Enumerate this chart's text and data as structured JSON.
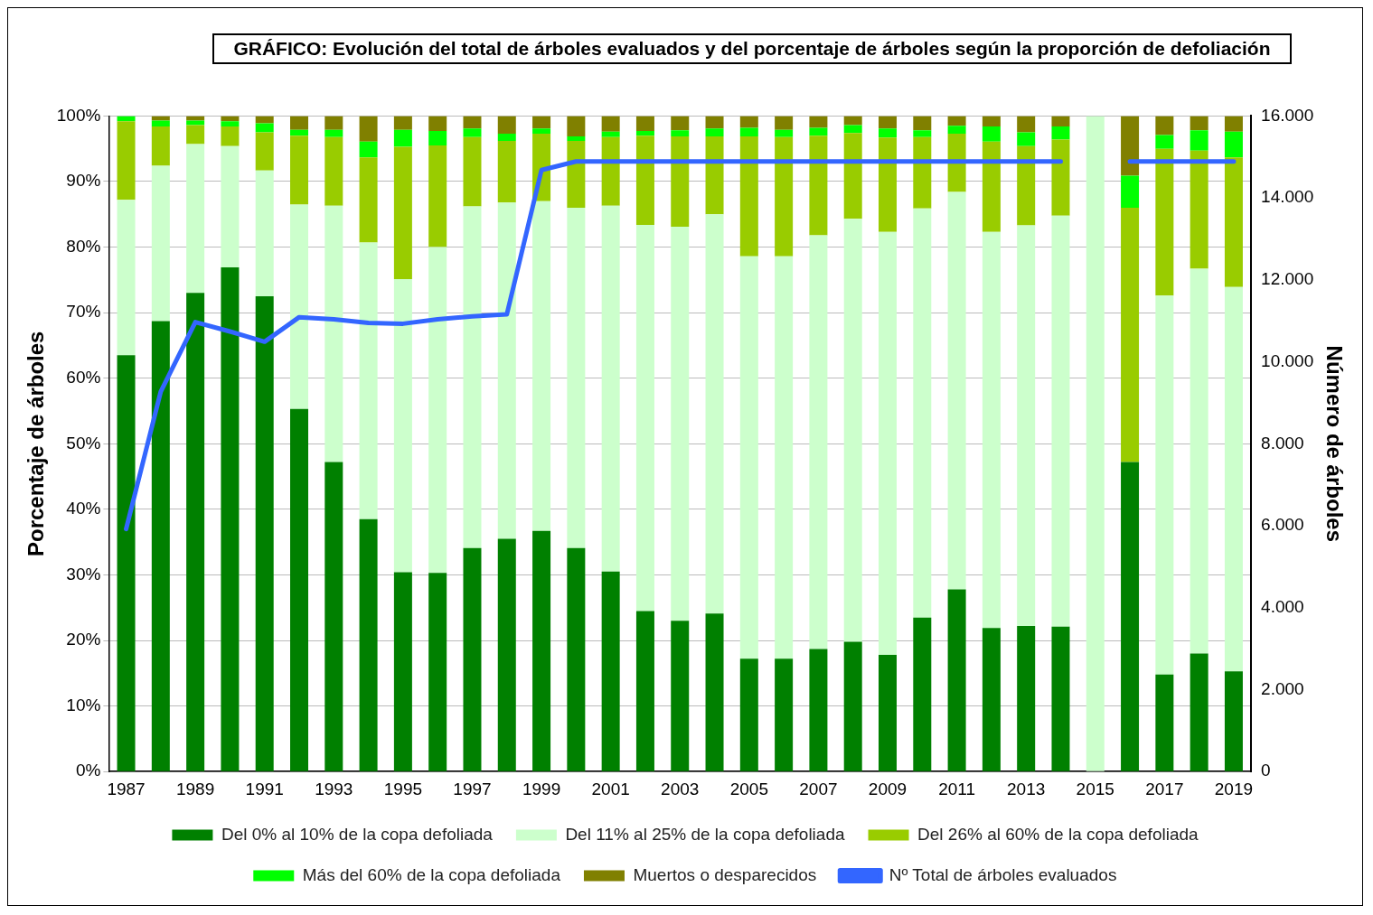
{
  "chart_data": {
    "type": "bar",
    "title": "GRÁFICO: Evolución del total de árboles evaluados y del porcentaje de árboles según la proporción de defoliación",
    "ylabel": "Porcentaje de árboles",
    "y2label": "Número de árboles",
    "categories": [
      "1987",
      null,
      "1989",
      null,
      "1991",
      null,
      "1993",
      null,
      "1995",
      null,
      "1997",
      null,
      "1999",
      null,
      "2001",
      null,
      "2003",
      null,
      "2005",
      null,
      "2007",
      null,
      "2009",
      null,
      "2011",
      null,
      "2013",
      null,
      "2015",
      null,
      "2017",
      null,
      "2019"
    ],
    "stacked": true,
    "grid": "y",
    "legend": "bottom",
    "ylim": [
      0,
      100
    ],
    "yticks": [
      {
        "value": 0,
        "label": "0%"
      },
      {
        "value": 10,
        "label": "10%"
      },
      {
        "value": 20,
        "label": "20%"
      },
      {
        "value": 30,
        "label": "30%"
      },
      {
        "value": 40,
        "label": "40%"
      },
      {
        "value": 50,
        "label": "50%"
      },
      {
        "value": 60,
        "label": "60%"
      },
      {
        "value": 70,
        "label": "70%"
      },
      {
        "value": 80,
        "label": "80%"
      },
      {
        "value": 90,
        "label": "90%"
      },
      {
        "value": 100,
        "label": "100%"
      }
    ],
    "y2lim": [
      0,
      16000
    ],
    "y2ticks": [
      0,
      {
        "value": 2000,
        "label": "2.000"
      },
      {
        "value": 4000,
        "label": "4.000"
      },
      {
        "value": 6000,
        "label": "6.000"
      },
      {
        "value": 8000,
        "label": "8.000"
      },
      {
        "value": 10000,
        "label": "10.000"
      },
      {
        "value": 12000,
        "label": "12.000"
      },
      {
        "value": 14000,
        "label": "14.000"
      },
      {
        "value": 16000,
        "label": "16.000"
      }
    ],
    "series": [
      {
        "name": "Del 0% al 10% de la copa defoliada",
        "color": "#008000",
        "values": [
          63.5,
          68.7,
          73,
          76.9,
          72.5,
          55.3,
          47.2,
          38.5,
          30.4,
          30.3,
          34.1,
          35.5,
          36.7,
          34.1,
          30.5,
          24.5,
          23,
          24.1,
          17.2,
          17.2,
          18.7,
          19.8,
          17.8,
          23.5,
          27.8,
          21.9,
          22.2,
          22.1,
          0,
          47.2,
          14.8,
          18,
          15.3
        ]
      },
      {
        "name": "Del 11% al 25% de la copa defoliada",
        "color": "#ccffcc",
        "values": [
          23.7,
          23.7,
          22.7,
          18.5,
          19.2,
          31.2,
          39.1,
          42.2,
          44.7,
          49.7,
          52.1,
          51.3,
          50.3,
          51.9,
          55.8,
          58.9,
          60.1,
          60.9,
          61.4,
          61.4,
          63.1,
          64.5,
          64.5,
          62.4,
          60.6,
          60.4,
          61.1,
          62.7,
          100,
          0,
          57.8,
          58.7,
          58.6
        ]
      },
      {
        "name": "Del 26% al 60% de la copa defoliada",
        "color": "#99cc00",
        "values": [
          12,
          6,
          2.9,
          3,
          5.8,
          10.5,
          10.5,
          13,
          20.2,
          15.5,
          10.6,
          9.4,
          10.3,
          10.2,
          10.5,
          13.6,
          13.8,
          11.9,
          18.3,
          18.2,
          15.2,
          13.1,
          14.4,
          10.9,
          8.9,
          13.8,
          12.1,
          11.6,
          0,
          38.8,
          22.4,
          18,
          19.8
        ]
      },
      {
        "name": "Más del 60% de la copa defoliada",
        "color": "#00ff00",
        "values": [
          0.8,
          0.9,
          0.7,
          0.8,
          1.4,
          0.9,
          1.1,
          2.4,
          2.6,
          2.2,
          1.3,
          1.1,
          0.8,
          0.7,
          0.8,
          0.7,
          0.9,
          1.2,
          1.3,
          1.1,
          1.2,
          1.2,
          1.4,
          1,
          1.2,
          2.3,
          2.1,
          2,
          0,
          4.9,
          2.1,
          3.1,
          3.9
        ]
      },
      {
        "name": "Muertos o desparecidos",
        "color": "#808000",
        "values": [
          0,
          0.7,
          0.7,
          0.8,
          1.1,
          2.1,
          2.1,
          3.9,
          2.1,
          2.3,
          1.9,
          2.7,
          1.9,
          3.1,
          2.4,
          2.3,
          2.2,
          1.9,
          1.8,
          2.1,
          1.8,
          1.4,
          1.9,
          2.2,
          1.5,
          1.6,
          2.5,
          1.6,
          0,
          9.1,
          2.9,
          2.2,
          2.4
        ]
      },
      {
        "name": "Nº Total de árboles evaluados",
        "type": "line",
        "axis": "y2",
        "color": "#3366ff",
        "values": [
          5920,
          9270,
          10970,
          10740,
          10490,
          11090,
          11040,
          10950,
          10930,
          11040,
          11110,
          11160,
          14680,
          14890,
          14890,
          14890,
          14890,
          14890,
          14890,
          14890,
          14890,
          14890,
          14890,
          14890,
          14890,
          14890,
          14890,
          14890,
          null,
          14890,
          14890,
          14890,
          14890
        ]
      }
    ]
  }
}
